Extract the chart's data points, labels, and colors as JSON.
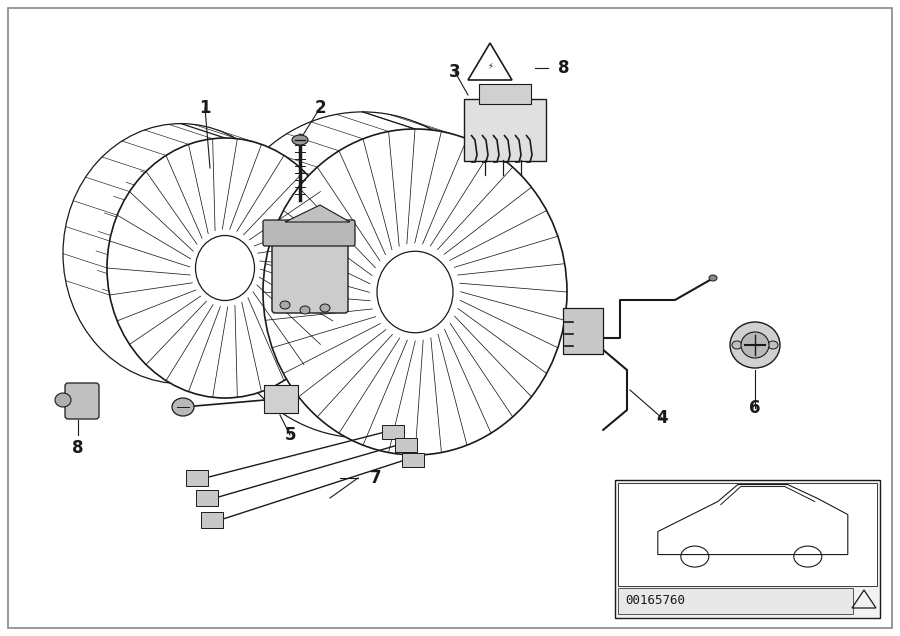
{
  "background_color": "#ffffff",
  "line_color": "#1a1a1a",
  "diagram_id": "00165760",
  "figsize": [
    9.0,
    6.36
  ],
  "dpi": 100
}
